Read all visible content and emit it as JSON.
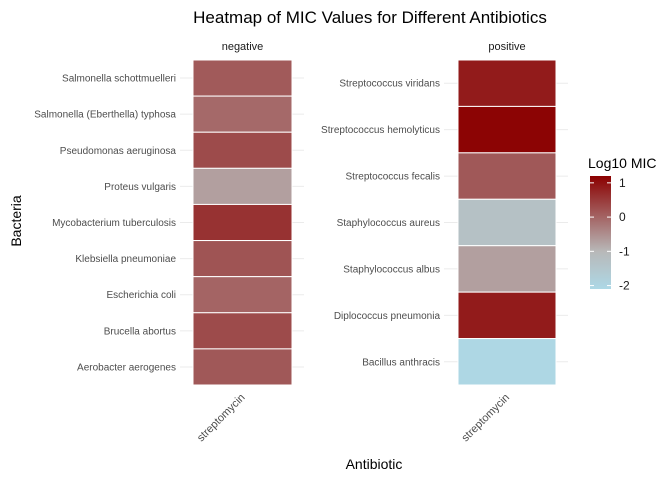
{
  "chart_data": {
    "type": "heatmap",
    "title": "Heatmap of MIC Values for Different Antibiotics",
    "xlabel": "Antibiotic",
    "ylabel": "Bacteria",
    "legend": {
      "title": "Log10 MIC",
      "position": "right",
      "ticks": [
        1,
        0,
        -1,
        -2
      ],
      "range": [
        -2.1,
        1.2
      ],
      "colors": {
        "low": "#add8e6",
        "mid": "#b8b8b8",
        "high": "#8b0000"
      }
    },
    "grid": true,
    "facets": [
      {
        "name": "negative",
        "x": [
          "streptomycin"
        ],
        "cells": [
          {
            "bacteria": "Salmonella schottmuelleri",
            "value": 0.12
          },
          {
            "bacteria": "Salmonella (Eberthella) typhosa",
            "value": -0.05
          },
          {
            "bacteria": "Pseudomonas aeruginosa",
            "value": 0.3
          },
          {
            "bacteria": "Proteus vulgaris",
            "value": -0.7
          },
          {
            "bacteria": "Mycobacterium tuberculosis",
            "value": 0.6
          },
          {
            "bacteria": "Klebsiella pneumoniae",
            "value": 0.2
          },
          {
            "bacteria": "Escherichia coli",
            "value": 0.0
          },
          {
            "bacteria": "Brucella abortus",
            "value": 0.3
          },
          {
            "bacteria": "Aerobacter aerogenes",
            "value": 0.15
          }
        ]
      },
      {
        "name": "positive",
        "x": [
          "streptomycin"
        ],
        "cells": [
          {
            "bacteria": "Streptococcus viridans",
            "value": 0.88
          },
          {
            "bacteria": "Streptococcus hemolyticus",
            "value": 1.15
          },
          {
            "bacteria": "Streptococcus fecalis",
            "value": 0.15
          },
          {
            "bacteria": "Staphylococcus aureus",
            "value": -1.3
          },
          {
            "bacteria": "Staphylococcus albus",
            "value": -0.7
          },
          {
            "bacteria": "Diplococcus pneumonia",
            "value": 0.88
          },
          {
            "bacteria": "Bacillus anthracis",
            "value": -2.05
          }
        ]
      }
    ]
  }
}
